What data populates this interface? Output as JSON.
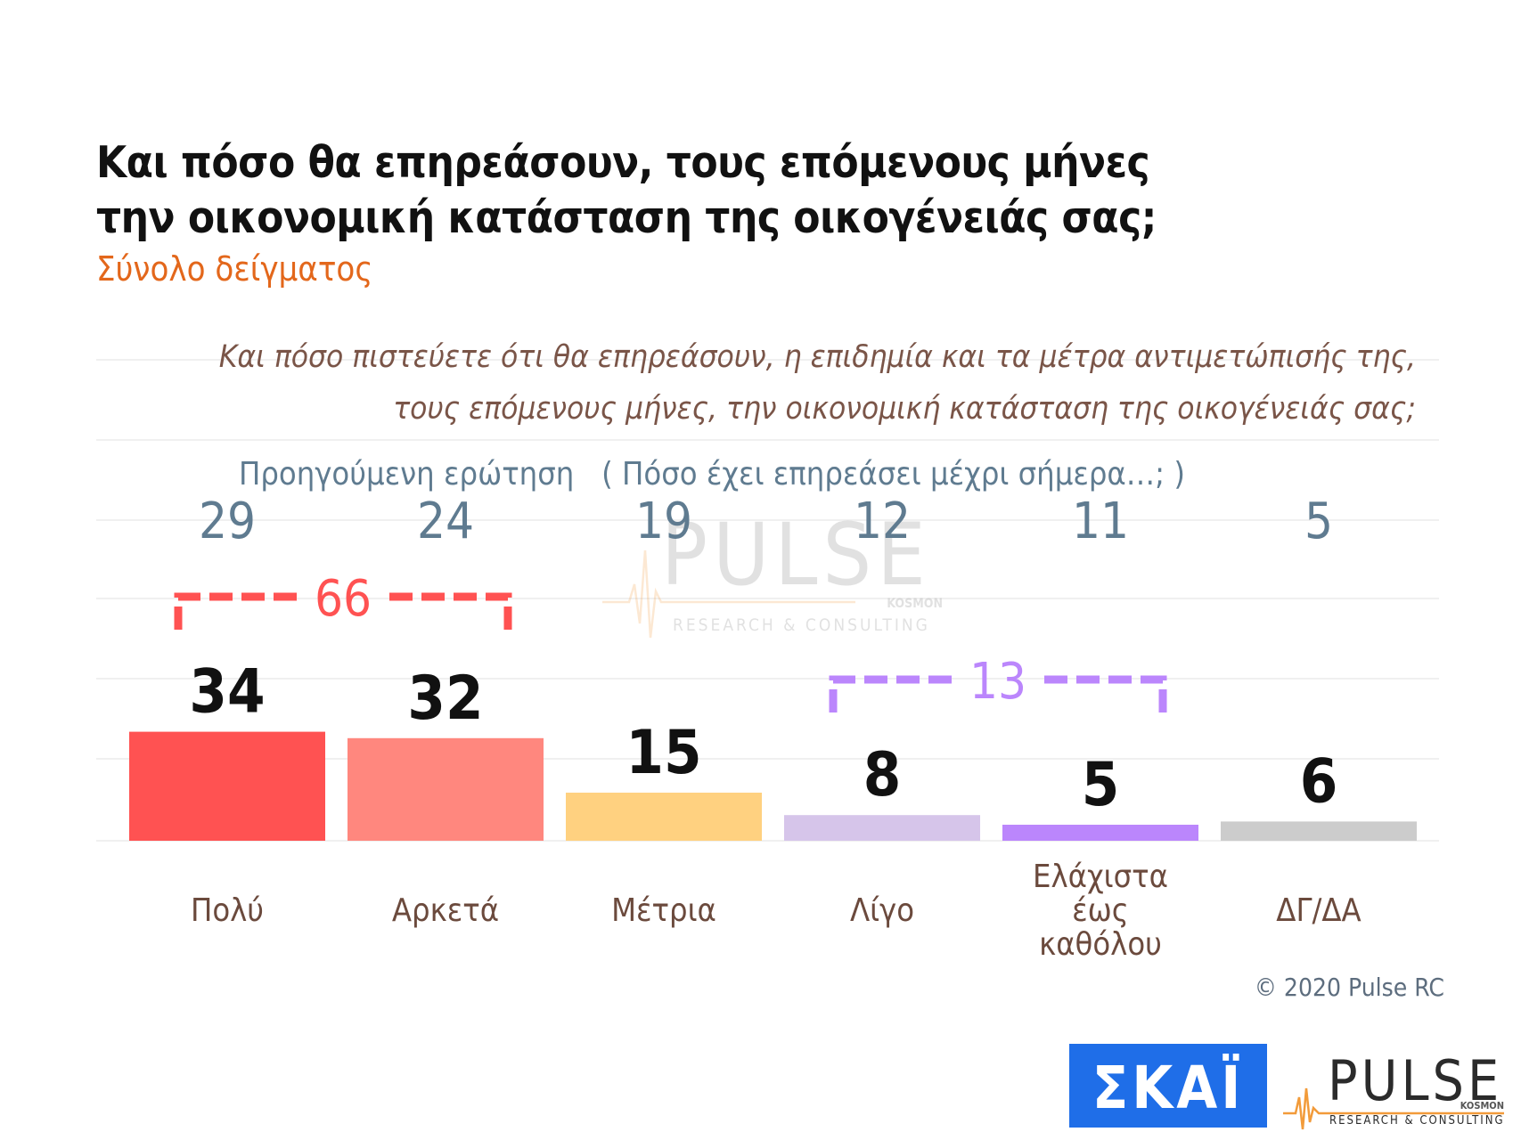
{
  "title": [
    "Και πόσο θα επηρεάσουν, τους επόμενους μήνες",
    "την οικονομική κατάσταση της οικογένειάς σας;"
  ],
  "subtitle": "Σύνολο δείγματος",
  "question": [
    "Και πόσο πιστεύετε ότι θα επηρεάσουν, η επιδημία και τα μέτρα αντιμετώπισής της,",
    "τους επόμενους μήνες, την οικονομική κατάσταση της οικογένειάς σας;"
  ],
  "previous_label": "Προηγούμενη ερώτηση   ( Πόσο έχει επηρεάσει μέχρι σήμερα…; )",
  "copyright": "© 2020 Pulse RC",
  "watermark": {
    "word": "PULSE",
    "sub": "RESEARCH & CONSULTING",
    "tag": "KOSMON"
  },
  "logos": {
    "skai_text": "ΣΚΑΪ",
    "pulse_word": "PULSE",
    "pulse_sub": "RESEARCH & CONSULTING",
    "pulse_tag": "KOSMON"
  },
  "colors": {
    "skai_bg": "#1f6ee8",
    "title": "#111111",
    "subtitle": "#e3671b",
    "question": "#7a5548",
    "previous": "#5f7b90",
    "category": "#6b4a3d"
  },
  "chart_data": {
    "type": "bar",
    "categories": [
      "Πολύ",
      "Αρκετά",
      "Μέτρια",
      "Λίγο",
      "Ελάχιστα έως καθόλου",
      "ΔΓ/ΔΑ"
    ],
    "category_lines": [
      [
        "Πολύ"
      ],
      [
        "Αρκετά"
      ],
      [
        "Μέτρια"
      ],
      [
        "Λίγο"
      ],
      [
        "Ελάχιστα",
        "έως",
        "καθόλου"
      ],
      [
        "ΔΓ/ΔΑ"
      ]
    ],
    "values": [
      34,
      32,
      15,
      8,
      5,
      6
    ],
    "previous_values": [
      29,
      24,
      19,
      12,
      11,
      5
    ],
    "bar_colors": [
      "#ff5252",
      "#ff877e",
      "#ffd180",
      "#d6c5ea",
      "#bb86fc",
      "#cccccc"
    ],
    "groups": [
      {
        "label": "66",
        "from": 0,
        "to": 1,
        "color": "#ff5252"
      },
      {
        "label": "13",
        "from": 3,
        "to": 4,
        "color": "#bb86fc"
      }
    ],
    "ylim": [
      0,
      100
    ],
    "grid": true
  }
}
